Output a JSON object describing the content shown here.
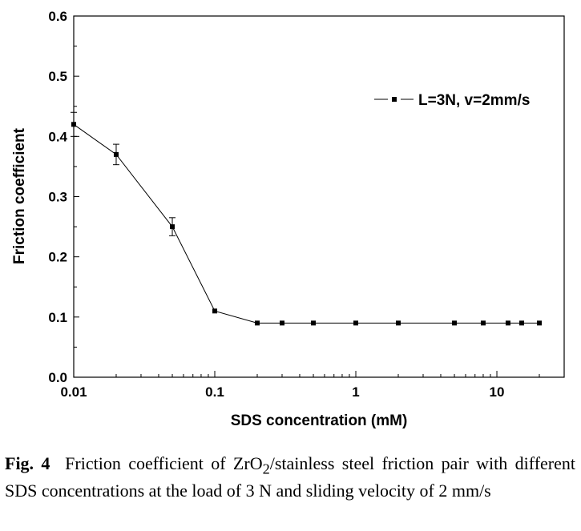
{
  "chart_data": {
    "type": "line",
    "title": "",
    "xlabel": "SDS concentration (mM)",
    "ylabel": "Friction coefficient",
    "xscale": "log",
    "xlim": [
      0.01,
      30
    ],
    "ylim": [
      0.0,
      0.6
    ],
    "grid": false,
    "legend_position": "top-right",
    "x_ticks": [
      0.01,
      0.1,
      1,
      10
    ],
    "x_tick_labels": [
      "0.01",
      "0.1",
      "1",
      "10"
    ],
    "y_ticks": [
      0.0,
      0.1,
      0.2,
      0.3,
      0.4,
      0.5,
      0.6
    ],
    "y_tick_labels": [
      "0.0",
      "0.1",
      "0.2",
      "0.3",
      "0.4",
      "0.5",
      "0.6"
    ],
    "series": [
      {
        "name": "L=3N, v=2mm/s",
        "marker": "square",
        "color": "#000000",
        "x": [
          0.01,
          0.02,
          0.05,
          0.1,
          0.2,
          0.3,
          0.5,
          1,
          2,
          5,
          8,
          12,
          15,
          20
        ],
        "y": [
          0.42,
          0.37,
          0.25,
          0.11,
          0.09,
          0.09,
          0.09,
          0.09,
          0.09,
          0.09,
          0.09,
          0.09,
          0.09,
          0.09
        ],
        "error": [
          0.02,
          0.017,
          0.015,
          0,
          0,
          0,
          0,
          0,
          0,
          0,
          0,
          0,
          0,
          0
        ]
      }
    ]
  },
  "caption": {
    "label": "Fig. 4",
    "text_before_sub": "Friction coefficient of ZrO",
    "subscript": "2",
    "text_after_sub": "/stainless steel friction pair with different SDS concentrations at the load of 3 N and sliding velocity of 2 mm/s"
  }
}
